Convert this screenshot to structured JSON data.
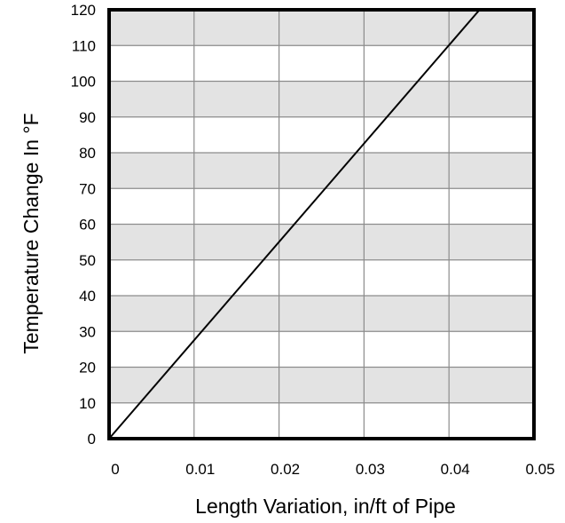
{
  "chart_data": {
    "type": "line",
    "title": "",
    "xlabel": "Length Variation, in/ft of Pipe",
    "ylabel": "Temperature Change In  °F",
    "xlim": [
      0,
      0.05
    ],
    "ylim": [
      0,
      120
    ],
    "x_ticks": [
      0,
      0.01,
      0.02,
      0.03,
      0.04,
      0.05
    ],
    "x_tick_labels": [
      "0",
      "0.01",
      "0.02",
      "0.03",
      "0.04",
      "0.05"
    ],
    "y_ticks": [
      0,
      10,
      20,
      30,
      40,
      50,
      60,
      70,
      80,
      90,
      100,
      110,
      120
    ],
    "y_tick_labels": [
      "0",
      "10",
      "20",
      "30",
      "40",
      "50",
      "60",
      "70",
      "80",
      "90",
      "100",
      "110",
      "120"
    ],
    "grid": true,
    "shaded_bands": [
      [
        10,
        20
      ],
      [
        30,
        40
      ],
      [
        50,
        60
      ],
      [
        70,
        80
      ],
      [
        90,
        100
      ],
      [
        110,
        120
      ]
    ],
    "band_color": "#e3e3e3",
    "series": [
      {
        "x": [
          0,
          0.0436
        ],
        "y": [
          0,
          120
        ],
        "color": "#000000"
      }
    ]
  }
}
